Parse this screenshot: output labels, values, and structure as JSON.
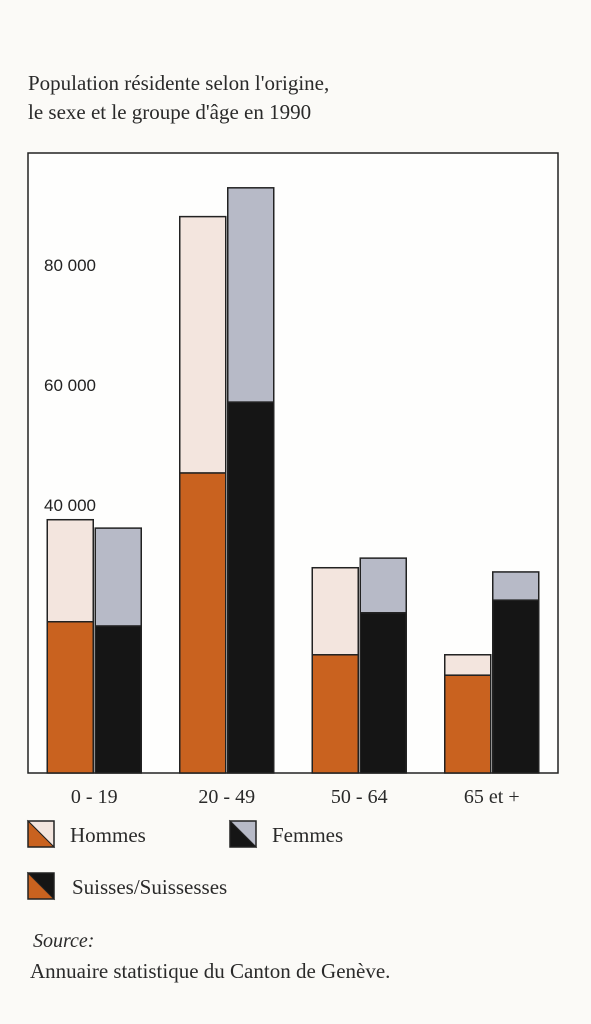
{
  "chart_data": {
    "type": "grouped-stacked-bar",
    "title": [
      "Population résidente selon l'origine,",
      "le sexe et le groupe d'âge en 1990"
    ],
    "categories": [
      "0 - 19",
      "20 - 49",
      "50 - 64",
      "65 et +"
    ],
    "series": [
      {
        "name": "Hommes",
        "color": "#f3e5de",
        "swiss_color": "#c9621f",
        "swiss_values": [
          25200,
          50000,
          19700,
          16300
        ],
        "values": [
          17000,
          42700,
          14500,
          3400
        ]
      },
      {
        "name": "Femmes",
        "color": "#b7bac7",
        "swiss_color": "#151515",
        "swiss_values": [
          24500,
          61800,
          26700,
          28800
        ],
        "values": [
          16300,
          35700,
          9100,
          4700
        ]
      }
    ],
    "swiss_label": "Suisses/Suissesses",
    "ylim": [
      0,
      103300
    ],
    "yticks": [
      {
        "value": 40000,
        "label": "40 000"
      },
      {
        "value": 60000,
        "label": "60 000"
      },
      {
        "value": 80000,
        "label": "80 000"
      }
    ],
    "source_label": "Source:",
    "source": "Annuaire statistique du Canton de Genève."
  }
}
